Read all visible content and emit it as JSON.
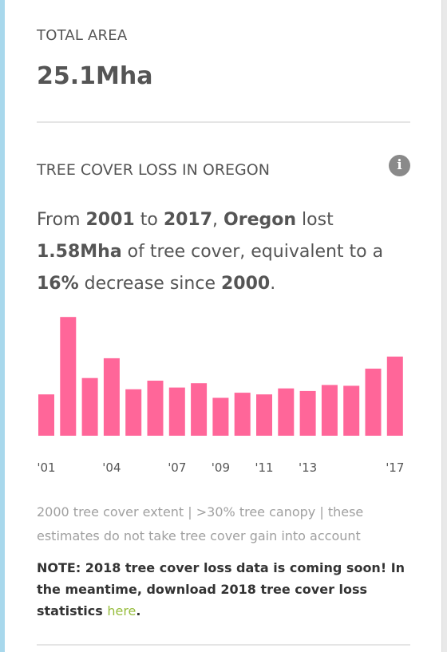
{
  "total_area": {
    "label": "TOTAL AREA",
    "value": "25.1Mha"
  },
  "tree_cover_loss": {
    "title": "TREE COVER LOSS IN OREGON",
    "sentence": {
      "p1": "From ",
      "start_year": "2001",
      "p2": " to ",
      "end_year": "2017",
      "p3": ", ",
      "location": "Oregon",
      "p4": " lost ",
      "loss": "1.58Mha",
      "p5": " of tree cover, equivalent to a ",
      "percent": "16%",
      "p6": " decrease since ",
      "baseline": "2000",
      "p7": "."
    },
    "caption": "2000 tree cover extent | >30% tree canopy | these estimates do not take tree cover gain into account",
    "note_text": "NOTE: 2018 tree cover loss data is coming soon! In the meantime, download 2018 tree cover loss statistics ",
    "note_link": "here",
    "note_end": "."
  },
  "colors": {
    "bar": "#ff6699",
    "link": "#97bd3d"
  },
  "chart_data": {
    "type": "bar",
    "categories": [
      "2001",
      "2002",
      "2003",
      "2004",
      "2005",
      "2006",
      "2007",
      "2008",
      "2009",
      "2010",
      "2011",
      "2012",
      "2013",
      "2014",
      "2015",
      "2016",
      "2017"
    ],
    "values": [
      48,
      138,
      67,
      90,
      54,
      64,
      56,
      61,
      44,
      50,
      48,
      55,
      52,
      59,
      58,
      78,
      92
    ],
    "value_unit": "relative bar height",
    "tick_labels": [
      {
        "index": 0,
        "label": "'01"
      },
      {
        "index": 3,
        "label": "'04"
      },
      {
        "index": 6,
        "label": "'07"
      },
      {
        "index": 8,
        "label": "'09"
      },
      {
        "index": 10,
        "label": "'11"
      },
      {
        "index": 12,
        "label": "'13"
      },
      {
        "index": 16,
        "label": "'17"
      }
    ],
    "title": "",
    "xlabel": "",
    "ylabel": "",
    "ylim": [
      0,
      140
    ],
    "grid": false
  }
}
